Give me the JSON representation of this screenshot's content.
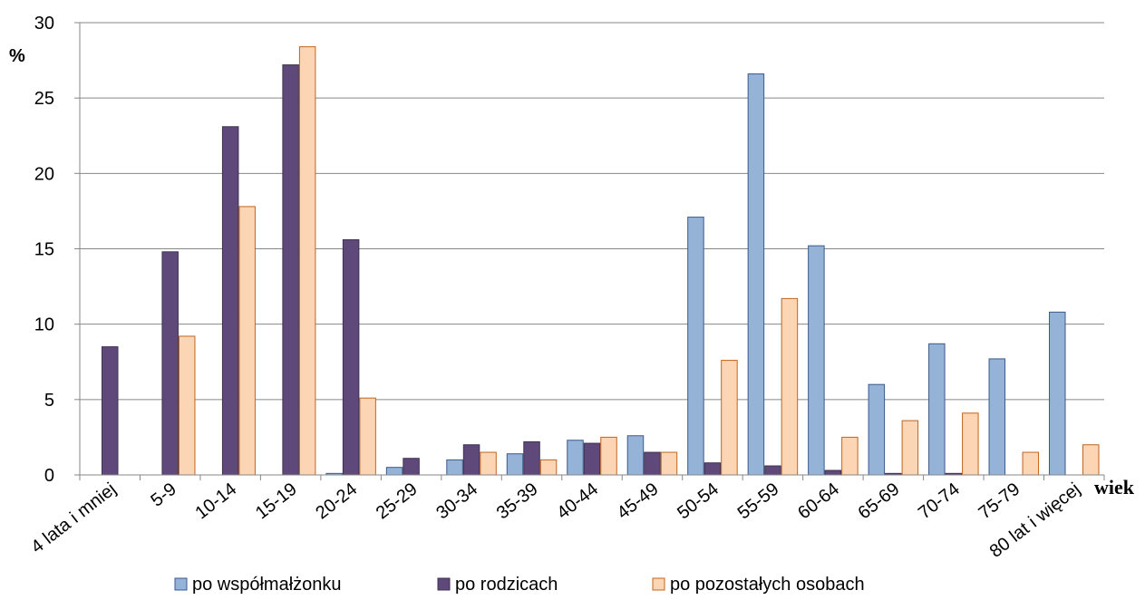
{
  "chart_data": {
    "type": "bar",
    "title": "",
    "xlabel": "wiek",
    "ylabel": "%",
    "ylim": [
      0,
      30
    ],
    "yticks": [
      "0",
      "5",
      "10",
      "15",
      "20",
      "25",
      "30"
    ],
    "grid": true,
    "legend_position": "bottom",
    "categories": [
      "4 lata i mniej",
      "5-9",
      "10-14",
      "15-19",
      "20-24",
      "25-29",
      "30-34",
      "35-39",
      "40-44",
      "45-49",
      "50-54",
      "55-59",
      "60-64",
      "65-69",
      "70-74",
      "75-79",
      "80 lat i więcej"
    ],
    "series": [
      {
        "name": "po współmałżonku",
        "color": "#95B3D7",
        "border": "#3A5A8C",
        "values": [
          0,
          0,
          0,
          0,
          0.1,
          0.5,
          1.0,
          1.4,
          2.3,
          2.6,
          17.1,
          26.6,
          15.2,
          6.0,
          8.7,
          7.7,
          10.8
        ]
      },
      {
        "name": "po rodzicach",
        "color": "#5F497A",
        "border": "#3F3151",
        "values": [
          8.5,
          14.8,
          23.1,
          27.2,
          15.6,
          1.1,
          2.0,
          2.2,
          2.1,
          1.5,
          0.8,
          0.6,
          0.3,
          0.1,
          0.1,
          0,
          0
        ]
      },
      {
        "name": "po pozostałych osobach",
        "color": "#FCD5B4",
        "border": "#C0651E",
        "values": [
          0,
          9.2,
          17.8,
          28.4,
          5.1,
          0,
          1.5,
          1.0,
          2.5,
          1.5,
          7.6,
          11.7,
          2.5,
          3.6,
          4.1,
          1.5,
          2.0
        ]
      }
    ]
  }
}
